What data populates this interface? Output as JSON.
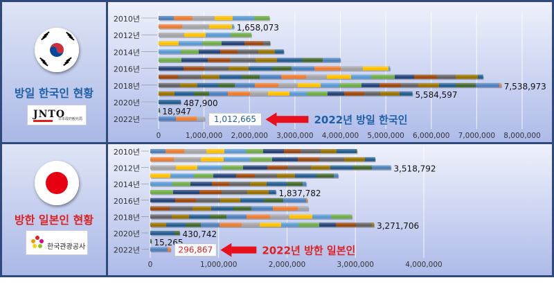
{
  "korea_panel": {
    "title": "방일 한국인 현황",
    "logo_name": "JNTO",
    "logo_sub": "日本政府観光局",
    "callout_text": "2022년 방일 한국인",
    "callout_color": "#1f5fa8",
    "flag": "south-korea-flag"
  },
  "japan_panel": {
    "title": "방한 일본인 현황",
    "logo_name": "한국관광공사",
    "callout_text": "2022년 방한 일본인",
    "callout_color": "#e02020",
    "flag": "japan-flag"
  },
  "chart_data": [
    {
      "type": "bar",
      "orientation": "horizontal",
      "title": "방일 한국인 현황",
      "categories": [
        "2010년",
        "2011년",
        "2012년",
        "2013년",
        "2014년",
        "2015년",
        "2016년",
        "2017년",
        "2018년",
        "2019년",
        "2020년",
        "2021년",
        "2022년"
      ],
      "tick_labels": [
        "2010년",
        "2012년",
        "2014년",
        "2016년",
        "2018년",
        "2020년",
        "2022년"
      ],
      "values": [
        2439816,
        1658073,
        2040000,
        2456165,
        2755313,
        4002095,
        5090302,
        7140438,
        7538973,
        5584597,
        487900,
        18947,
        1012665
      ],
      "data_labels": [
        {
          "category": "2011년",
          "text": "1,658,073"
        },
        {
          "category": "2018년",
          "text": "7,538,973"
        },
        {
          "category": "2019년",
          "text": "5,584,597"
        },
        {
          "category": "2020년",
          "text": "487,900"
        },
        {
          "category": "2021년",
          "text": "18,947"
        },
        {
          "category": "2022년",
          "text": "1,012,665",
          "boxed": true
        }
      ],
      "xlim": [
        0,
        8000000
      ],
      "x_ticks": [
        "0",
        "1,000,000",
        "2,000,000",
        "3,000,000",
        "4,000,000",
        "5,000,000",
        "6,000,000",
        "7,000,000",
        "8,000,000"
      ],
      "label_color": "#1f5fa8",
      "grid": true
    },
    {
      "type": "bar",
      "orientation": "horizontal",
      "title": "방한 일본인 현황",
      "categories": [
        "2010년",
        "2011년",
        "2012년",
        "2013년",
        "2014년",
        "2015년",
        "2016년",
        "2017년",
        "2018년",
        "2019년",
        "2020년",
        "2021년",
        "2022년"
      ],
      "tick_labels": [
        "2010년",
        "2012년",
        "2014년",
        "2016년",
        "2018년",
        "2020년",
        "2022년"
      ],
      "values": [
        3023009,
        3289051,
        3518792,
        2747750,
        2280434,
        1837782,
        2297893,
        2311447,
        2948527,
        3271706,
        430742,
        15265,
        296867
      ],
      "data_labels": [
        {
          "category": "2012년",
          "text": "3,518,792"
        },
        {
          "category": "2015년",
          "text": "1,837,782"
        },
        {
          "category": "2019년",
          "text": "3,271,706"
        },
        {
          "category": "2020년",
          "text": "430,742"
        },
        {
          "category": "2021년",
          "text": "15,265"
        },
        {
          "category": "2022년",
          "text": "296,867",
          "boxed": true
        }
      ],
      "xlim": [
        0,
        4800000
      ],
      "x_ticks": [
        "0",
        "1,000,000",
        "2,000,000",
        "3,000,000",
        "4,000,000"
      ],
      "label_color": "#e02020",
      "grid": true
    }
  ],
  "bar_segment_colors": [
    "#4f81bd",
    "#ed7d31",
    "#a5a5a5",
    "#ffc000",
    "#5b9bd5",
    "#70ad47",
    "#264478",
    "#9e480e",
    "#636363",
    "#997300",
    "#255e91",
    "#43682b"
  ]
}
